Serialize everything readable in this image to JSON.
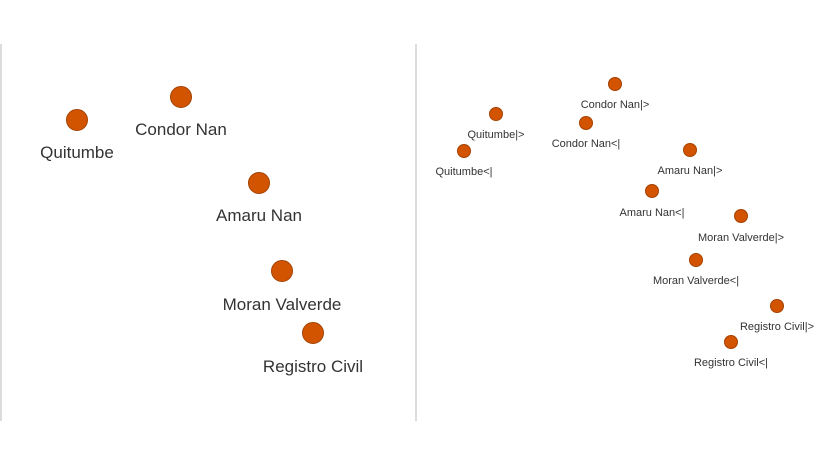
{
  "theme": {
    "dot_color": "#d35400",
    "dot_stroke": "#a34200",
    "label_color": "#333333",
    "divider_color": "#b8b8b8"
  },
  "left_panel": {
    "stations": [
      {
        "id": "quitumbe",
        "label": "Quitumbe"
      },
      {
        "id": "condor-nan",
        "label": "Condor Nan"
      },
      {
        "id": "amaru-nan",
        "label": "Amaru Nan"
      },
      {
        "id": "moran-valverde",
        "label": "Moran Valverde"
      },
      {
        "id": "registro-civil",
        "label": "Registro Civil"
      }
    ]
  },
  "right_panel": {
    "stations": [
      {
        "id": "quitumbe-out",
        "label": "Quitumbe|>"
      },
      {
        "id": "quitumbe-in",
        "label": "Quitumbe<|"
      },
      {
        "id": "condor-nan-out",
        "label": "Condor Nan|>"
      },
      {
        "id": "condor-nan-in",
        "label": "Condor Nan<|"
      },
      {
        "id": "amaru-nan-out",
        "label": "Amaru Nan|>"
      },
      {
        "id": "amaru-nan-in",
        "label": "Amaru Nan<|"
      },
      {
        "id": "moran-valverde-out",
        "label": "Moran Valverde|>"
      },
      {
        "id": "moran-valverde-in",
        "label": "Moran Valverde<|"
      },
      {
        "id": "registro-civil-out",
        "label": "Registro Civil|>"
      },
      {
        "id": "registro-civil-in",
        "label": "Registro Civil<|"
      }
    ]
  }
}
